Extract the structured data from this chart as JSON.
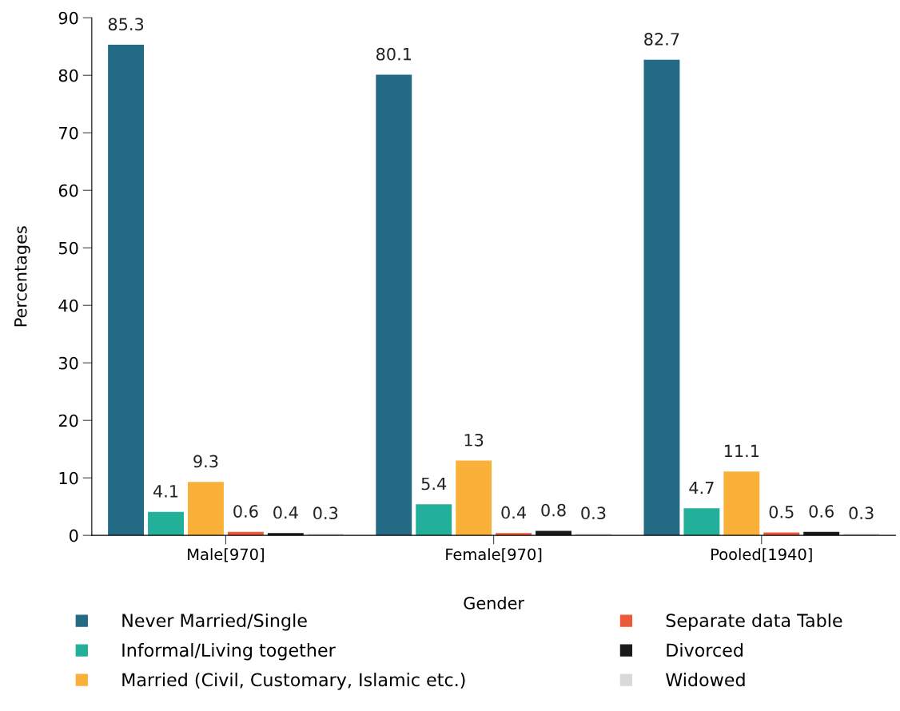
{
  "chart_data": {
    "type": "bar",
    "xlabel": "Gender",
    "ylabel": "Percentages",
    "categories": [
      "Male[970]",
      "Female[970]",
      "Pooled[1940]"
    ],
    "series": [
      {
        "name": "Never Married/Single",
        "color": "#236a84",
        "values": [
          85.3,
          80.1,
          82.7
        ]
      },
      {
        "name": "Informal/Living together",
        "color": "#23b09a",
        "values": [
          4.1,
          5.4,
          4.7
        ]
      },
      {
        "name": "Married (Civil, Customary, Islamic etc.)",
        "color": "#f9b13a",
        "values": [
          9.3,
          13,
          11.1
        ]
      },
      {
        "name": "Separate data Table",
        "color": "#ec5a3b",
        "values": [
          0.6,
          0.4,
          0.5
        ]
      },
      {
        "name": "Divorced",
        "color": "#1a1a1a",
        "values": [
          0.4,
          0.8,
          0.6
        ]
      },
      {
        "name": "Widowed",
        "color": "#d9d9d9",
        "values": [
          0.3,
          0.3,
          0.3
        ]
      }
    ],
    "ylim": [
      0,
      90
    ],
    "yticks": [
      0,
      10,
      20,
      30,
      40,
      50,
      60,
      70,
      80,
      90
    ],
    "data_labels": true,
    "grid": false,
    "legend": "bottom"
  }
}
